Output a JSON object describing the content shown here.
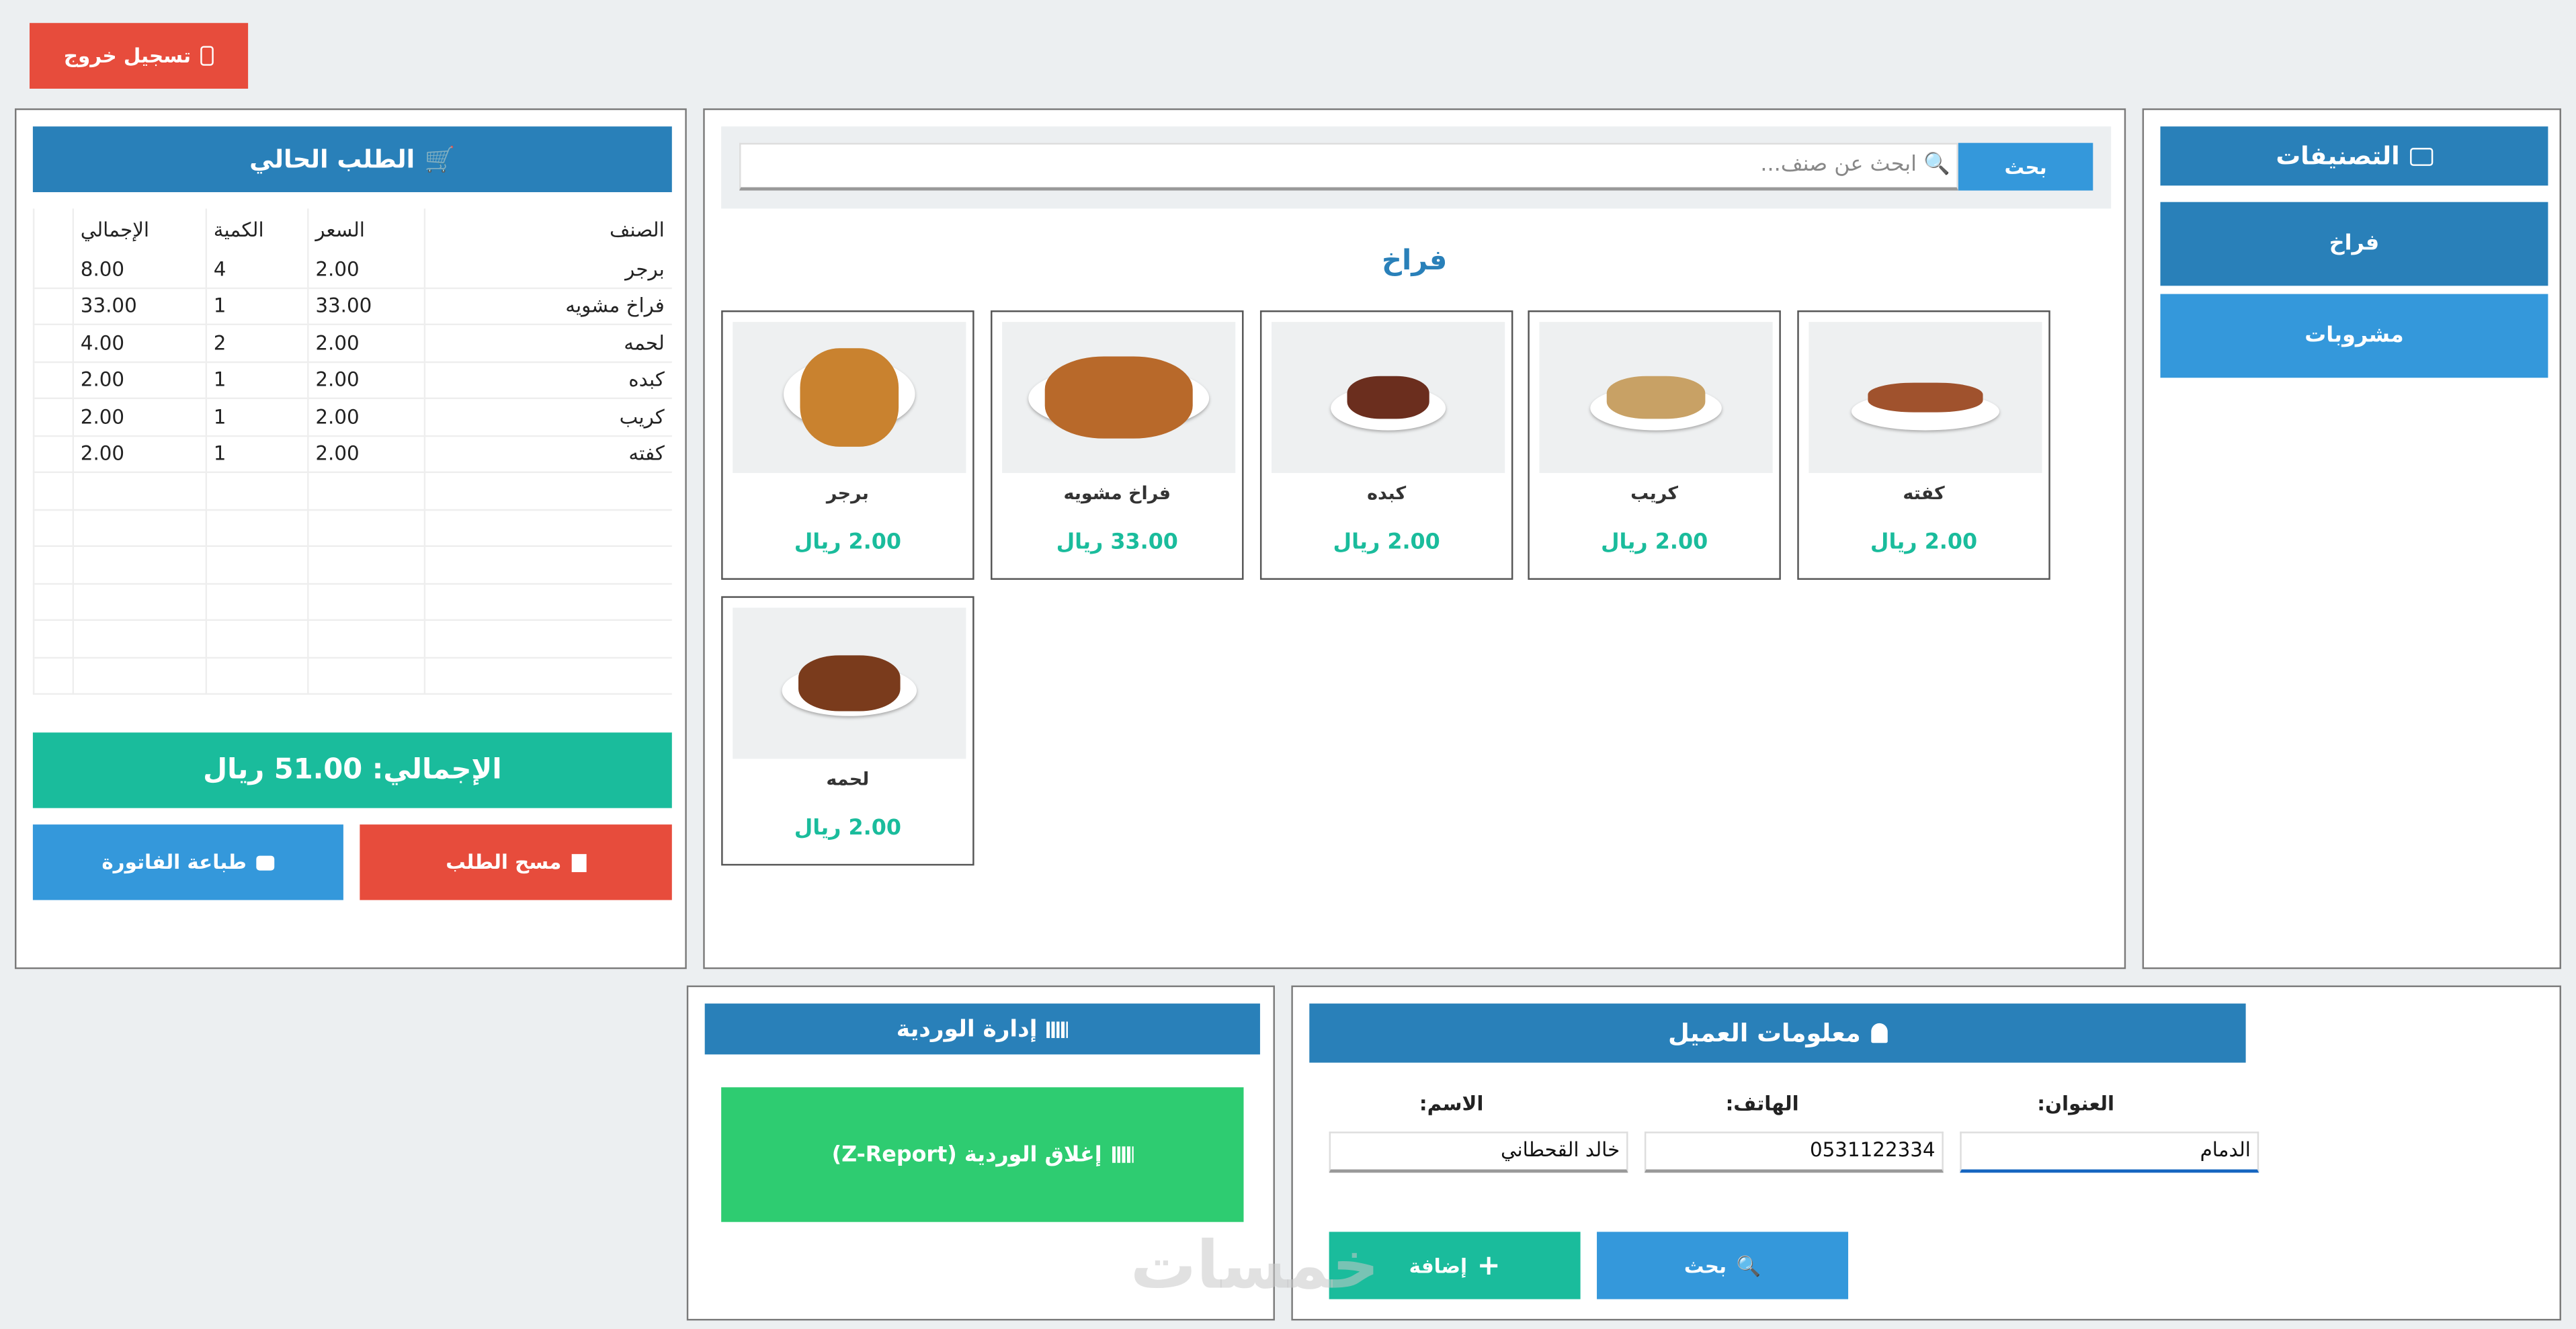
{
  "header": {
    "logout_label": "تسجيل خروج",
    "logout_icon": "phone-icon"
  },
  "order": {
    "title": "الطلب الحالي",
    "icon": "cart-icon",
    "columns": [
      "الصنف",
      "السعر",
      "الكمية",
      "الإجمالي"
    ],
    "rows": [
      {
        "item": "برجر",
        "price": "2.00",
        "qty": "4",
        "total": "8.00"
      },
      {
        "item": "فراخ مشويه",
        "price": "33.00",
        "qty": "1",
        "total": "33.00"
      },
      {
        "item": "لحمه",
        "price": "2.00",
        "qty": "2",
        "total": "4.00"
      },
      {
        "item": "كبده",
        "price": "2.00",
        "qty": "1",
        "total": "2.00"
      },
      {
        "item": "كريب",
        "price": "2.00",
        "qty": "1",
        "total": "2.00"
      },
      {
        "item": "كفته",
        "price": "2.00",
        "qty": "1",
        "total": "2.00"
      }
    ],
    "grand_total": "الإجمالي: 51.00 ريال",
    "clear_label": "مسح الطلب",
    "print_label": "طباعة الفاتورة"
  },
  "menu": {
    "search_placeholder": "ابحث عن صنف...",
    "search_button": "بحث",
    "category_title": "فراخ",
    "items": [
      {
        "name": "كفته",
        "price": "2.00 ريال"
      },
      {
        "name": "كريب",
        "price": "2.00 ريال"
      },
      {
        "name": "كبده",
        "price": "2.00 ريال"
      },
      {
        "name": "فراخ مشويه",
        "price": "33.00 ريال"
      },
      {
        "name": "برجر",
        "price": "2.00 ريال"
      },
      {
        "name": "لحمه",
        "price": "2.00 ريال"
      }
    ]
  },
  "categories": {
    "title": "التصنيفات",
    "items": [
      "فراخ",
      "مشروبات"
    ]
  },
  "shift": {
    "title": "إدارة الوردية",
    "close_label": "إغلاق الوردية (Z-Report)"
  },
  "customer": {
    "title": "معلومات العميل",
    "address_label": "العنوان:",
    "phone_label": "الهاتف:",
    "name_label": "الاسم:",
    "address_value": "الدمام",
    "phone_value": "0531122334",
    "name_value": "خالد القحطاني",
    "search_label": "بحث",
    "add_label": "إضافة"
  },
  "watermark": "خمسات",
  "colors": {
    "primary": "#2980b9",
    "light_blue": "#3498db",
    "teal": "#1abc9c",
    "red": "#e74c3c",
    "green": "#2ecc71"
  }
}
